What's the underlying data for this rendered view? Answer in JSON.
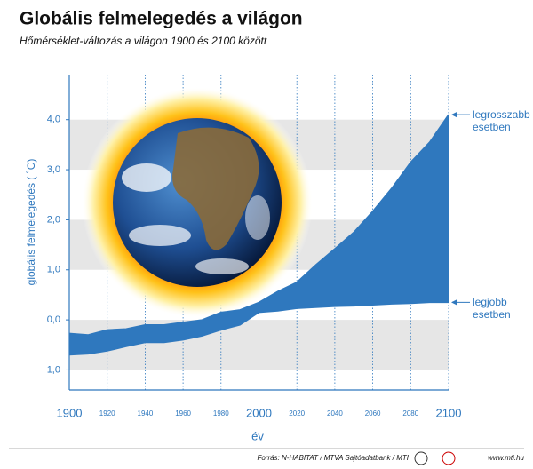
{
  "chart_data": {
    "type": "band",
    "title": "Globális felmelegedés a világon",
    "subtitle": "Hőmérséklet-változás a világon 1900 és 2100 között",
    "x_label": "év",
    "y_label": "globális felmelegedés ( ˚C)",
    "x": [
      1900,
      1910,
      1920,
      1930,
      1940,
      1950,
      1960,
      1970,
      1980,
      1990,
      2000,
      2010,
      2020,
      2030,
      2040,
      2050,
      2060,
      2070,
      2080,
      2090,
      2100
    ],
    "series": [
      {
        "name": "legrosszabb esetben",
        "color": "#2f78be",
        "values": [
          -0.27,
          -0.3,
          -0.2,
          -0.18,
          -0.1,
          -0.1,
          -0.05,
          0,
          0.15,
          0.2,
          0.35,
          0.57,
          0.75,
          1.1,
          1.42,
          1.75,
          2.17,
          2.63,
          3.15,
          3.55,
          4.1
        ]
      },
      {
        "name": "legjobb esetben",
        "color": "#2f78be",
        "values": [
          -0.7,
          -0.68,
          -0.62,
          -0.53,
          -0.45,
          -0.45,
          -0.4,
          -0.32,
          -0.2,
          -0.1,
          0.15,
          0.18,
          0.23,
          0.25,
          0.27,
          0.28,
          0.3,
          0.32,
          0.33,
          0.35,
          0.35
        ]
      }
    ],
    "xlim": [
      1900,
      2100
    ],
    "xticks": [
      1900,
      1920,
      1940,
      1960,
      1980,
      2000,
      2020,
      2040,
      2060,
      2080,
      2100
    ],
    "ylim": [
      -1.4,
      4.9
    ],
    "yticks": [
      {
        "value": -1,
        "label": "-1,0"
      },
      {
        "value": 0,
        "label": "0,0"
      },
      {
        "value": 1,
        "label": "1,0"
      },
      {
        "value": 2,
        "label": "2,0"
      },
      {
        "value": 3,
        "label": "3,0"
      },
      {
        "value": 4,
        "label": "4,0"
      }
    ],
    "band_color": "#2f78be",
    "stripe_color": "#e6e6e6",
    "source": "Forrás: N-HABITAT / MTVA Sajtóadatbank / MTI",
    "website": "www.mti.hu"
  }
}
